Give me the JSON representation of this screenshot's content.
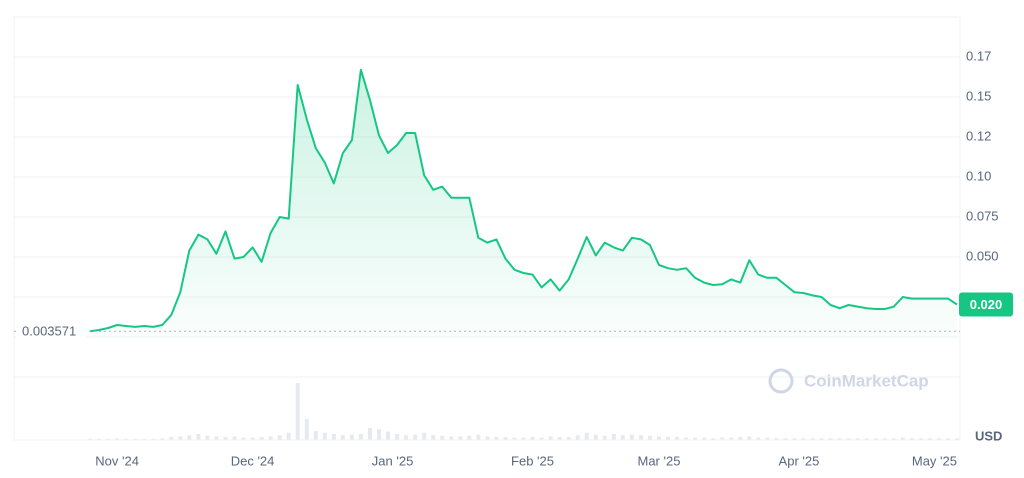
{
  "chart_data": {
    "type": "line",
    "values": [
      0.0036,
      0.0044,
      0.0056,
      0.0075,
      0.0069,
      0.0063,
      0.0069,
      0.0063,
      0.0075,
      0.0138,
      0.028,
      0.054,
      0.064,
      0.061,
      0.052,
      0.066,
      0.049,
      0.05,
      0.056,
      0.047,
      0.065,
      0.075,
      0.074,
      0.1575,
      0.136,
      0.118,
      0.109,
      0.096,
      0.115,
      0.123,
      0.167,
      0.148,
      0.126,
      0.115,
      0.12,
      0.1275,
      0.1275,
      0.101,
      0.092,
      0.094,
      0.087,
      0.087,
      0.087,
      0.062,
      0.059,
      0.061,
      0.049,
      0.042,
      0.04,
      0.039,
      0.031,
      0.036,
      0.029,
      0.036,
      0.049,
      0.0625,
      0.051,
      0.059,
      0.056,
      0.054,
      0.062,
      0.061,
      0.0575,
      0.045,
      0.043,
      0.042,
      0.043,
      0.037,
      0.034,
      0.0325,
      0.033,
      0.036,
      0.034,
      0.048,
      0.039,
      0.037,
      0.037,
      0.0325,
      0.028,
      0.0275,
      0.026,
      0.025,
      0.02,
      0.018,
      0.02,
      0.019,
      0.018,
      0.0175,
      0.0175,
      0.019,
      0.025,
      0.024,
      0.024,
      0.024,
      0.024,
      0.024,
      0.0203
    ],
    "value_labels": [
      null,
      null,
      null,
      null,
      null,
      null,
      null,
      null,
      null,
      null,
      null,
      null,
      null,
      null,
      null,
      null,
      null,
      null,
      null,
      null,
      null,
      null,
      null,
      null,
      null,
      null,
      null,
      null,
      null,
      null,
      null,
      null,
      null,
      null,
      null,
      null,
      null,
      null,
      null,
      null,
      null,
      null,
      null,
      null,
      null,
      null,
      null,
      null,
      null,
      null,
      null,
      null,
      null,
      null,
      null,
      null,
      null,
      null,
      null,
      null,
      null,
      null,
      null,
      null,
      null,
      null,
      null,
      null,
      null,
      null,
      null,
      null,
      null,
      null,
      null,
      null,
      null,
      null,
      null,
      null,
      null,
      null,
      null,
      null,
      null,
      null,
      null,
      null,
      null,
      null,
      null,
      null,
      null,
      null,
      null,
      null,
      "0.020"
    ],
    "color": "#16c784",
    "xlim": [
      0,
      96
    ],
    "xticks": [
      {
        "value": 3,
        "label": "Nov '24"
      },
      {
        "value": 18,
        "label": "Dec '24"
      },
      {
        "value": 33.5,
        "label": "Jan '25"
      },
      {
        "value": 49,
        "label": "Feb '25"
      },
      {
        "value": 63,
        "label": "Mar '25"
      },
      {
        "value": 78.5,
        "label": "Apr '25"
      },
      {
        "value": 93.5,
        "label": "May '25"
      }
    ],
    "ylim": [
      0,
      0.2
    ],
    "yticks": [
      {
        "value": 0.05,
        "label": "0.050"
      },
      0.075,
      {
        "value": 0.1,
        "label": "0.10"
      },
      {
        "value": 0.125,
        "label": "0.12"
      },
      0.15,
      {
        "value": 0.175,
        "label": "0.17"
      }
    ],
    "grid": true,
    "baseline": 0.003571,
    "currency": "USD",
    "watermark": "CoinMarketCap",
    "volume": [
      2,
      2,
      2,
      3,
      2,
      2,
      2,
      2,
      3,
      5,
      6,
      8,
      10,
      7,
      6,
      5,
      6,
      4,
      4,
      5,
      6,
      8,
      12,
      95,
      35,
      15,
      12,
      10,
      8,
      9,
      10,
      20,
      18,
      14,
      10,
      8,
      9,
      12,
      8,
      7,
      6,
      6,
      7,
      9,
      6,
      5,
      5,
      4,
      4,
      5,
      4,
      6,
      5,
      5,
      8,
      12,
      9,
      7,
      10,
      8,
      9,
      8,
      7,
      6,
      5,
      5,
      4,
      4,
      4,
      3,
      4,
      4,
      5,
      6,
      4,
      4,
      3,
      3,
      3,
      3,
      3,
      3,
      3,
      3,
      3,
      3,
      3,
      3,
      3,
      3,
      4,
      3,
      3,
      3,
      3,
      3,
      3
    ],
    "volume_ylim": [
      0,
      100
    ]
  }
}
